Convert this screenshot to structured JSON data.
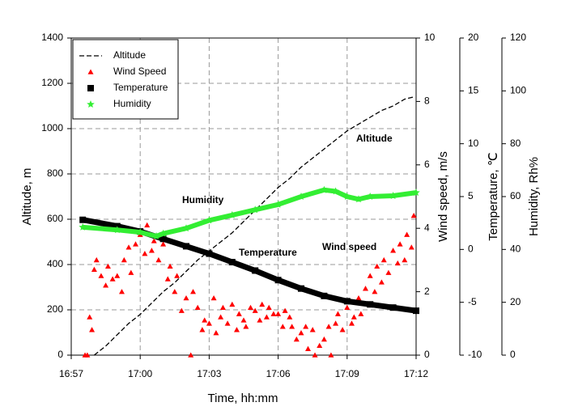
{
  "chart_data": {
    "type": "multi-axis",
    "xlabel": "Time, hh:mm",
    "ylabel": "Altitude, m",
    "y2label": "Wind speed, m/s",
    "y3label": "Temperature, ℃",
    "y4label": "Humidity, Rh%",
    "xlim": [
      1017,
      1032
    ],
    "xticks": [
      {
        "value": 1017,
        "label": "16:57"
      },
      {
        "value": 1020,
        "label": "17:00"
      },
      {
        "value": 1023,
        "label": "17:03"
      },
      {
        "value": 1026,
        "label": "17:06"
      },
      {
        "value": 1029,
        "label": "17:09"
      },
      {
        "value": 1032,
        "label": "17:12"
      }
    ],
    "ylim": [
      0,
      1400
    ],
    "yticks": [
      0,
      200,
      400,
      600,
      800,
      1000,
      1200,
      1400
    ],
    "y2lim": [
      0,
      10
    ],
    "y2ticks": [
      0,
      2,
      4,
      6,
      8,
      10
    ],
    "y3lim": [
      -10,
      20
    ],
    "y3ticks": [
      -10,
      -5,
      0,
      5,
      10,
      15,
      20
    ],
    "y4lim": [
      0,
      120
    ],
    "y4ticks": [
      0,
      20,
      40,
      60,
      80,
      100,
      120
    ],
    "grid": true,
    "legend": "upper left",
    "annotations": [
      "Altitude",
      "Humidity",
      "Temperature",
      "Wind speed"
    ],
    "series": [
      {
        "name": "Altitude",
        "color": "#000000",
        "style": "dashed",
        "axis": "y",
        "x": [
          1018,
          1018.5,
          1019,
          1019.5,
          1020,
          1020.5,
          1021,
          1021.5,
          1022,
          1022.5,
          1023,
          1023.5,
          1024,
          1024.5,
          1025,
          1025.5,
          1026,
          1026.5,
          1027,
          1027.5,
          1028,
          1028.5,
          1029,
          1029.5,
          1030,
          1030.5,
          1031,
          1031.5,
          1031.9
        ],
        "values": [
          0,
          40,
          90,
          140,
          180,
          230,
          280,
          320,
          370,
          420,
          460,
          500,
          540,
          590,
          640,
          690,
          740,
          780,
          830,
          870,
          910,
          950,
          990,
          1020,
          1050,
          1080,
          1100,
          1130,
          1140
        ]
      },
      {
        "name": "Wind Speed",
        "color": "#ff0000",
        "style": "triangle",
        "axis": "y2",
        "x": [
          1017.6,
          1017.7,
          1017.8,
          1017.9,
          1018,
          1018.1,
          1018.3,
          1018.5,
          1018.6,
          1018.8,
          1019,
          1019.2,
          1019.3,
          1019.5,
          1019.6,
          1019.8,
          1020,
          1020.2,
          1020.3,
          1020.5,
          1020.6,
          1020.8,
          1021,
          1021.2,
          1021.3,
          1021.5,
          1021.6,
          1021.8,
          1022,
          1022.2,
          1022.3,
          1022.5,
          1022.7,
          1022.8,
          1023,
          1023.2,
          1023.3,
          1023.5,
          1023.6,
          1023.8,
          1024,
          1024.2,
          1024.3,
          1024.5,
          1024.6,
          1024.8,
          1025,
          1025.2,
          1025.3,
          1025.5,
          1025.6,
          1025.8,
          1026,
          1026.2,
          1026.3,
          1026.5,
          1026.6,
          1026.8,
          1027,
          1027.2,
          1027.3,
          1027.5,
          1027.6,
          1027.8,
          1028,
          1028.2,
          1028.3,
          1028.5,
          1028.6,
          1028.8,
          1029,
          1029.2,
          1029.3,
          1029.5,
          1029.6,
          1029.8,
          1030,
          1030.2,
          1030.3,
          1030.5,
          1030.6,
          1030.8,
          1031,
          1031.2,
          1031.3,
          1031.5,
          1031.6,
          1031.8,
          1031.9
        ],
        "values": [
          0,
          0,
          1.2,
          0.8,
          2.7,
          3.0,
          2.5,
          2.2,
          2.8,
          2.4,
          2.5,
          2.0,
          3.0,
          3.4,
          2.6,
          3.5,
          3.8,
          3.2,
          4.1,
          3.3,
          3.6,
          3.0,
          3.5,
          2.4,
          2.8,
          2.0,
          2.5,
          1.4,
          1.8,
          0,
          2.0,
          1.5,
          0.8,
          1.1,
          1.0,
          1.8,
          0.7,
          1.2,
          1.5,
          1.0,
          1.6,
          0.8,
          1.3,
          1.1,
          0.9,
          1.5,
          1.4,
          1.1,
          1.6,
          1.2,
          1.5,
          1.3,
          1.3,
          0.9,
          1.4,
          1.2,
          0.9,
          0.5,
          0.7,
          0.9,
          0.2,
          0.8,
          0,
          0.3,
          0.5,
          0.9,
          0,
          1.0,
          1.3,
          0.8,
          1.5,
          1.0,
          1.2,
          1.8,
          1.3,
          2.1,
          2.5,
          2.0,
          2.8,
          2.3,
          3.0,
          2.6,
          3.3,
          2.9,
          3.5,
          3.0,
          3.8,
          3.4,
          4.4
        ]
      },
      {
        "name": "Temperature",
        "color": "#000000",
        "style": "square",
        "axis": "y3",
        "x": [
          1017.5,
          1019,
          1020,
          1021,
          1022,
          1023,
          1024,
          1025,
          1026,
          1027,
          1028,
          1029,
          1030,
          1031,
          1032
        ],
        "values": [
          2.8,
          2.2,
          1.7,
          1.0,
          0.3,
          -0.4,
          -1.2,
          -2.0,
          -2.9,
          -3.7,
          -4.4,
          -4.9,
          -5.2,
          -5.5,
          -5.8
        ]
      },
      {
        "name": "Humidity",
        "color": "#33ee33",
        "style": "star",
        "axis": "y4",
        "x": [
          1017.5,
          1019,
          1020,
          1020.7,
          1021,
          1022,
          1023,
          1024,
          1025,
          1026,
          1027,
          1028,
          1028.5,
          1029,
          1029.5,
          1030,
          1031,
          1032
        ],
        "values": [
          48.4,
          47.4,
          46.5,
          45,
          46,
          48,
          51,
          53,
          55,
          57,
          60,
          62.5,
          62,
          60,
          59,
          60,
          60.3,
          61.5
        ]
      }
    ]
  }
}
